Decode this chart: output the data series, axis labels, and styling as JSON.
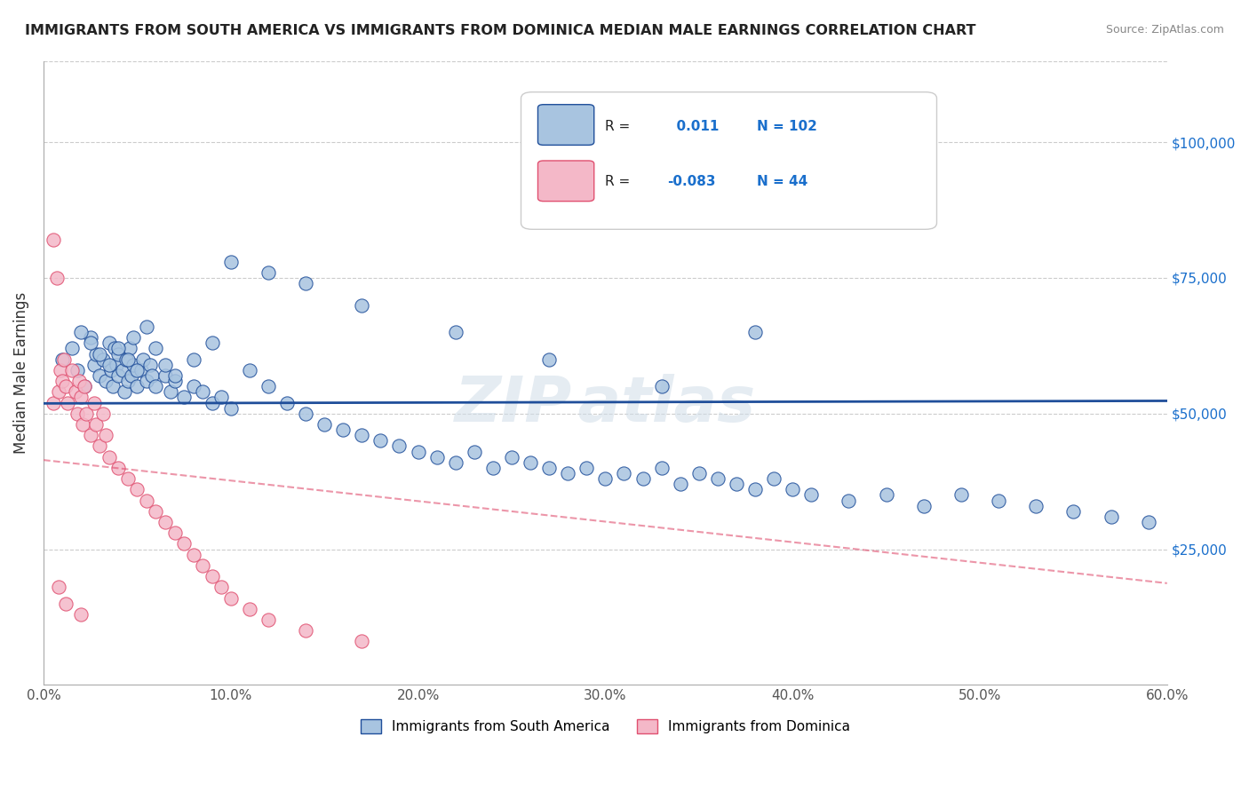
{
  "title": "IMMIGRANTS FROM SOUTH AMERICA VS IMMIGRANTS FROM DOMINICA MEDIAN MALE EARNINGS CORRELATION CHART",
  "source": "Source: ZipAtlas.com",
  "xlabel_bottom": "",
  "ylabel": "Median Male Earnings",
  "xlim": [
    0.0,
    0.6
  ],
  "ylim": [
    0,
    115000
  ],
  "xtick_labels": [
    "0.0%",
    "10.0%",
    "20.0%",
    "30.0%",
    "40.0%",
    "50.0%",
    "60.0%"
  ],
  "xtick_vals": [
    0.0,
    0.1,
    0.2,
    0.3,
    0.4,
    0.5,
    0.6
  ],
  "ytick_vals": [
    0,
    25000,
    50000,
    75000,
    100000
  ],
  "ytick_labels": [
    "",
    "$25,000",
    "$50,000",
    "$75,000",
    "$100,000"
  ],
  "r_blue": 0.011,
  "n_blue": 102,
  "r_pink": -0.083,
  "n_pink": 44,
  "legend_labels": [
    "Immigrants from South America",
    "Immigrants from Dominica"
  ],
  "color_blue": "#a8c4e0",
  "color_blue_line": "#1f4e9a",
  "color_pink": "#f4b8c8",
  "color_pink_line": "#e05070",
  "watermark": "ZIPAtlas",
  "blue_scatter_x": [
    0.01,
    0.015,
    0.018,
    0.022,
    0.025,
    0.027,
    0.028,
    0.03,
    0.032,
    0.033,
    0.035,
    0.036,
    0.037,
    0.038,
    0.039,
    0.04,
    0.04,
    0.042,
    0.043,
    0.044,
    0.045,
    0.046,
    0.047,
    0.048,
    0.05,
    0.052,
    0.053,
    0.055,
    0.057,
    0.058,
    0.06,
    0.065,
    0.068,
    0.07,
    0.075,
    0.08,
    0.085,
    0.09,
    0.095,
    0.1,
    0.11,
    0.12,
    0.13,
    0.14,
    0.15,
    0.16,
    0.17,
    0.18,
    0.19,
    0.2,
    0.21,
    0.22,
    0.23,
    0.24,
    0.25,
    0.26,
    0.27,
    0.28,
    0.29,
    0.3,
    0.31,
    0.32,
    0.33,
    0.34,
    0.35,
    0.36,
    0.37,
    0.38,
    0.39,
    0.4,
    0.41,
    0.43,
    0.45,
    0.47,
    0.49,
    0.51,
    0.53,
    0.55,
    0.57,
    0.59,
    0.02,
    0.025,
    0.03,
    0.035,
    0.04,
    0.045,
    0.048,
    0.05,
    0.055,
    0.06,
    0.065,
    0.07,
    0.08,
    0.09,
    0.1,
    0.12,
    0.14,
    0.17,
    0.22,
    0.27,
    0.33,
    0.38
  ],
  "blue_scatter_y": [
    60000,
    62000,
    58000,
    55000,
    64000,
    59000,
    61000,
    57000,
    60000,
    56000,
    63000,
    58000,
    55000,
    62000,
    59000,
    57000,
    61000,
    58000,
    54000,
    60000,
    56000,
    62000,
    57000,
    59000,
    55000,
    58000,
    60000,
    56000,
    59000,
    57000,
    55000,
    57000,
    54000,
    56000,
    53000,
    55000,
    54000,
    52000,
    53000,
    51000,
    58000,
    55000,
    52000,
    50000,
    48000,
    47000,
    46000,
    45000,
    44000,
    43000,
    42000,
    41000,
    43000,
    40000,
    42000,
    41000,
    40000,
    39000,
    40000,
    38000,
    39000,
    38000,
    40000,
    37000,
    39000,
    38000,
    37000,
    36000,
    38000,
    36000,
    35000,
    34000,
    35000,
    33000,
    35000,
    34000,
    33000,
    32000,
    31000,
    30000,
    65000,
    63000,
    61000,
    59000,
    62000,
    60000,
    64000,
    58000,
    66000,
    62000,
    59000,
    57000,
    60000,
    63000,
    78000,
    76000,
    74000,
    70000,
    65000,
    60000,
    55000,
    65000
  ],
  "pink_scatter_x": [
    0.005,
    0.007,
    0.008,
    0.009,
    0.01,
    0.011,
    0.012,
    0.013,
    0.015,
    0.017,
    0.018,
    0.019,
    0.02,
    0.021,
    0.022,
    0.023,
    0.025,
    0.027,
    0.028,
    0.03,
    0.032,
    0.033,
    0.035,
    0.04,
    0.045,
    0.05,
    0.055,
    0.06,
    0.065,
    0.07,
    0.075,
    0.08,
    0.085,
    0.09,
    0.095,
    0.1,
    0.11,
    0.12,
    0.14,
    0.17,
    0.005,
    0.008,
    0.012,
    0.02
  ],
  "pink_scatter_y": [
    52000,
    75000,
    54000,
    58000,
    56000,
    60000,
    55000,
    52000,
    58000,
    54000,
    50000,
    56000,
    53000,
    48000,
    55000,
    50000,
    46000,
    52000,
    48000,
    44000,
    50000,
    46000,
    42000,
    40000,
    38000,
    36000,
    34000,
    32000,
    30000,
    28000,
    26000,
    24000,
    22000,
    20000,
    18000,
    16000,
    14000,
    12000,
    10000,
    8000,
    82000,
    18000,
    15000,
    13000
  ]
}
